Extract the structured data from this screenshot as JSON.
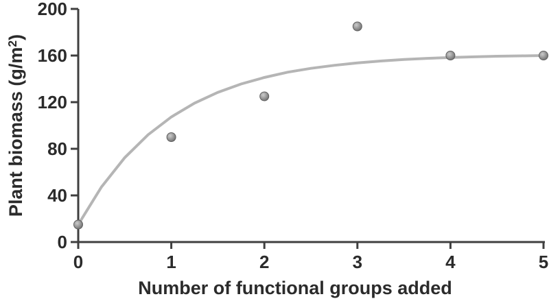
{
  "chart_data": {
    "type": "scatter",
    "title": "",
    "xlabel": "Number of functional groups added",
    "ylabel": "Plant biomass (g/m²)",
    "ylabel_parts": {
      "prefix": "Plant biomass (g/m",
      "sup": "2",
      "suffix": ")"
    },
    "xlim": [
      0,
      5
    ],
    "ylim": [
      0,
      200
    ],
    "x_ticks": [
      0,
      1,
      2,
      3,
      4,
      5
    ],
    "y_ticks": [
      0,
      40,
      80,
      120,
      160,
      200
    ],
    "grid": false,
    "legend": null,
    "points": [
      [
        0,
        15
      ],
      [
        1,
        90
      ],
      [
        2,
        125
      ],
      [
        3,
        185
      ],
      [
        4,
        160
      ],
      [
        5,
        160
      ]
    ],
    "fit_curve": {
      "description": "saturating exponential fit, plateau ~160 g/m2",
      "samples": [
        [
          0,
          15.0
        ],
        [
          0.25,
          47.3
        ],
        [
          0.5,
          72.4
        ],
        [
          0.75,
          92.0
        ],
        [
          1,
          107.3
        ],
        [
          1.25,
          119.2
        ],
        [
          1.5,
          128.4
        ],
        [
          1.75,
          135.6
        ],
        [
          2,
          141.2
        ],
        [
          2.25,
          145.7
        ],
        [
          2.5,
          149.0
        ],
        [
          2.75,
          151.6
        ],
        [
          3,
          153.7
        ],
        [
          3.25,
          155.3
        ],
        [
          3.5,
          156.6
        ],
        [
          3.75,
          157.6
        ],
        [
          4,
          158.3
        ],
        [
          4.25,
          158.9
        ],
        [
          4.5,
          159.4
        ],
        [
          4.75,
          159.7
        ],
        [
          5,
          160.0
        ]
      ]
    },
    "colors": {
      "curve": "#b5b5b5",
      "point_light": "#cccccc",
      "point_dark": "#6e6e6e",
      "point_stroke": "#5f5f5f",
      "axis": "#3f3f3f",
      "text": "#2b2b2b"
    }
  }
}
